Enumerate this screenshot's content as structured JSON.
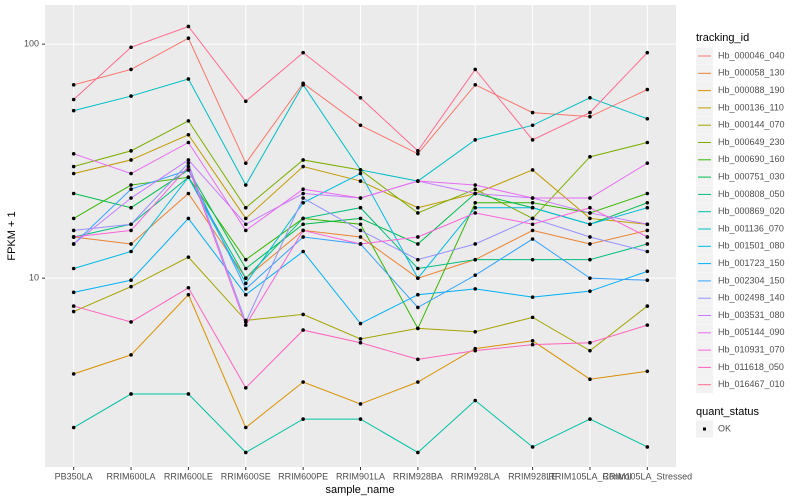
{
  "chart_data": {
    "type": "line",
    "x_label": "sample_name",
    "y_label": "FPKM + 1",
    "categories": [
      "PB350LA",
      "RRIM600LA",
      "RRIM600LE",
      "RRIM600SE",
      "RRIM600PE",
      "RRIM901LA",
      "RRIM928BA",
      "RRIM928LA",
      "RRIM928LE",
      "RRIM105LA_Control",
      "RRIM105LA_Stressed"
    ],
    "ylim": [
      1.56,
      147
    ],
    "yticks": [
      10,
      100
    ],
    "y_scale": "log",
    "grid": true,
    "legend_title": "tracking_id",
    "legend_position": "right",
    "shape_legend_title": "quant_status",
    "shape_legend_labels": [
      "OK"
    ],
    "point_color": "#000000",
    "series": [
      {
        "name": "Hb_000046_040",
        "color": "#F8766D",
        "values": [
          67,
          78,
          106,
          31,
          68,
          45,
          34,
          67,
          51,
          49,
          64
        ]
      },
      {
        "name": "Hb_000058_130",
        "color": "#EA8331",
        "values": [
          15,
          14,
          23,
          10,
          16,
          15,
          10,
          12,
          16,
          14,
          16
        ]
      },
      {
        "name": "Hb_000088_190",
        "color": "#D89000",
        "values": [
          3.9,
          4.7,
          8.5,
          2.3,
          3.6,
          2.9,
          3.6,
          5.0,
          5.4,
          3.7,
          4.0
        ]
      },
      {
        "name": "Hb_000136_110",
        "color": "#C09B00",
        "values": [
          28,
          32,
          41,
          18,
          30,
          26,
          20,
          23,
          29,
          18,
          17
        ]
      },
      {
        "name": "Hb_000144_070",
        "color": "#A3A500",
        "values": [
          7.2,
          9.2,
          12.3,
          6.6,
          7.0,
          5.5,
          6.1,
          5.9,
          6.8,
          4.9,
          7.6
        ]
      },
      {
        "name": "Hb_000649_230",
        "color": "#7CAE00",
        "values": [
          30,
          35,
          47,
          20,
          32,
          29,
          19,
          24,
          18,
          33,
          38
        ]
      },
      {
        "name": "Hb_000690_160",
        "color": "#39B600",
        "values": [
          18,
          25,
          27,
          12,
          18,
          17,
          6.1,
          21,
          21,
          19,
          23
        ]
      },
      {
        "name": "Hb_000751_030",
        "color": "#00BB4E",
        "values": [
          23,
          20,
          29,
          11,
          17,
          18,
          14,
          23,
          20,
          17,
          21
        ]
      },
      {
        "name": "Hb_000808_050",
        "color": "#00BF7D",
        "values": [
          15,
          17,
          27,
          10,
          18,
          20,
          11,
          12,
          12,
          12,
          14
        ]
      },
      {
        "name": "Hb_000869_020",
        "color": "#00C1A3",
        "values": [
          2.3,
          3.2,
          3.2,
          1.8,
          2.5,
          2.5,
          1.8,
          3.0,
          1.9,
          2.5,
          1.9
        ]
      },
      {
        "name": "Hb_001136_070",
        "color": "#00BFC4",
        "values": [
          52,
          60,
          71,
          25,
          67,
          29,
          26,
          39,
          45,
          59,
          48
        ]
      },
      {
        "name": "Hb_001501_080",
        "color": "#00BAE0",
        "values": [
          11,
          13,
          27,
          9.5,
          21,
          28,
          10,
          20,
          20,
          17,
          20
        ]
      },
      {
        "name": "Hb_001723_150",
        "color": "#00B0F6",
        "values": [
          8.7,
          9.8,
          18,
          8.5,
          13,
          6.4,
          8.5,
          9.0,
          8.3,
          8.8,
          10.7
        ]
      },
      {
        "name": "Hb_002304_150",
        "color": "#35A2FF",
        "values": [
          14,
          24,
          29,
          9,
          15,
          14,
          7.5,
          10.3,
          14.7,
          10,
          9.8
        ]
      },
      {
        "name": "Hb_002498_140",
        "color": "#9590FF",
        "values": [
          16,
          17,
          31,
          6.5,
          22,
          16,
          12,
          14,
          18,
          15,
          13
        ]
      },
      {
        "name": "Hb_003531_080",
        "color": "#C77CFF",
        "values": [
          14,
          22,
          32,
          17,
          23,
          22,
          26,
          23,
          22,
          19,
          17
        ]
      },
      {
        "name": "Hb_005144_090",
        "color": "#E76BF3",
        "values": [
          34,
          28,
          38,
          16,
          24,
          22,
          26,
          25,
          22,
          22,
          31
        ]
      },
      {
        "name": "Hb_010931_070",
        "color": "#FA62DB",
        "values": [
          15,
          16,
          30,
          6.3,
          16,
          14,
          15,
          19,
          17,
          20,
          15
        ]
      },
      {
        "name": "Hb_011618_050",
        "color": "#FF62BC",
        "values": [
          7.6,
          6.5,
          9.1,
          3.4,
          6.0,
          5.3,
          4.5,
          4.9,
          5.2,
          5.3,
          6.3
        ]
      },
      {
        "name": "Hb_016467_010",
        "color": "#FF6C91",
        "values": [
          58,
          97,
          119,
          57,
          92,
          59,
          35,
          78,
          39,
          51,
          92
        ]
      }
    ]
  }
}
